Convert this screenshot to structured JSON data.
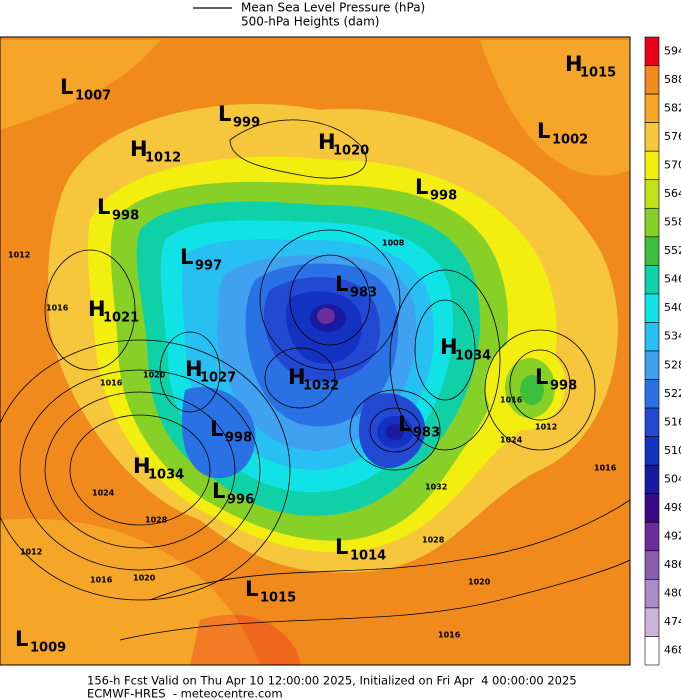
{
  "legend": {
    "line_label": "Mean Sea Level Pressure (hPa)",
    "fill_label": "500-hPa Heights (dam)"
  },
  "colorbar": {
    "ticks": [
      594,
      588,
      582,
      576,
      570,
      564,
      558,
      552,
      546,
      540,
      534,
      528,
      522,
      516,
      510,
      504,
      498,
      492,
      486,
      480,
      474,
      468
    ],
    "colors": [
      "#e8001a",
      "#f08a1c",
      "#f5a629",
      "#f6c63c",
      "#f2ee10",
      "#c2e21a",
      "#86d028",
      "#3cbf3c",
      "#10d0a8",
      "#10e2e6",
      "#28bff2",
      "#3fa1f0",
      "#2a72e4",
      "#2349d2",
      "#1432c2",
      "#1a1aa0",
      "#3a0a86",
      "#6c2c9c",
      "#8c5cae",
      "#aa8cc4",
      "#ccb4dc",
      "#ffffff"
    ]
  },
  "centers": [
    {
      "letter": "L",
      "value": 1007
    },
    {
      "letter": "L",
      "value": 999
    },
    {
      "letter": "H",
      "value": 1012
    },
    {
      "letter": "H",
      "value": 1020
    },
    {
      "letter": "H",
      "value": 1015
    },
    {
      "letter": "L",
      "value": 1002
    },
    {
      "letter": "L",
      "value": 998
    },
    {
      "letter": "L",
      "value": 998
    },
    {
      "letter": "L",
      "value": 997
    },
    {
      "letter": "L",
      "value": 983
    },
    {
      "letter": "H",
      "value": 1021
    },
    {
      "letter": "H",
      "value": 1034
    },
    {
      "letter": "L",
      "value": 998
    },
    {
      "letter": "H",
      "value": 1027
    },
    {
      "letter": "H",
      "value": 1032
    },
    {
      "letter": "L",
      "value": 998
    },
    {
      "letter": "L",
      "value": 983
    },
    {
      "letter": "H",
      "value": 1034
    },
    {
      "letter": "L",
      "value": 996
    },
    {
      "letter": "L",
      "value": 1014
    },
    {
      "letter": "L",
      "value": 1015
    },
    {
      "letter": "L",
      "value": 1009
    }
  ],
  "isobar_labels": [
    1012,
    1016,
    1016,
    1020,
    1024,
    1028,
    1020,
    1016,
    1012,
    1008,
    1016,
    1024,
    1012,
    1016,
    1032,
    1028,
    1020,
    1016
  ],
  "footer": {
    "line1": "156-h Fcst Valid on Thu Apr 10 12:00:00 2025, Initialized on Fri Apr  4 00:00:00 2025",
    "line2": "ECMWF-HRES  - meteocentre.com"
  }
}
